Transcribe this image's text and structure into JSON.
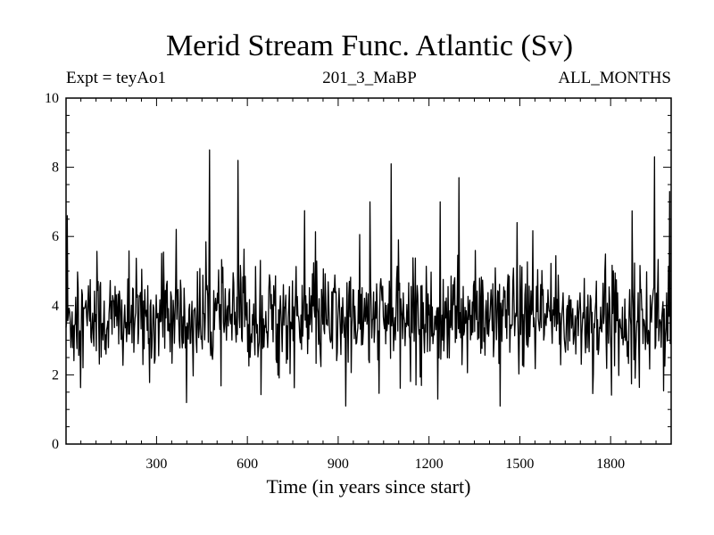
{
  "chart_data": {
    "type": "line",
    "title": "Merid Stream Func. Atlantic (Sv)",
    "header_left": "Expt = teyAo1",
    "header_center": "201_3_MaBP",
    "header_right": "ALL_MONTHS",
    "xlabel": "Time (in years since start)",
    "ylabel": "",
    "xlim": [
      1,
      2000
    ],
    "ylim": [
      0,
      10
    ],
    "xticks": [
      300,
      600,
      900,
      1200,
      1500,
      1800
    ],
    "yticks": [
      0,
      2,
      4,
      6,
      8,
      10
    ],
    "grid": false,
    "series": [
      {
        "name": "Merid Stream Func. Atlantic",
        "color": "#000000",
        "mean": 3.6,
        "std": 0.75,
        "sample_step": 2,
        "peaks": [
          {
            "x": 5,
            "y": 6.6
          },
          {
            "x": 475,
            "y": 8.5
          },
          {
            "x": 570,
            "y": 8.2
          },
          {
            "x": 1075,
            "y": 8.1
          },
          {
            "x": 1300,
            "y": 7.7
          },
          {
            "x": 1945,
            "y": 8.3
          },
          {
            "x": 1995,
            "y": 7.3
          }
        ],
        "troughs": [
          {
            "x": 400,
            "y": 1.2
          },
          {
            "x": 925,
            "y": 1.1
          },
          {
            "x": 1230,
            "y": 1.3
          },
          {
            "x": 1435,
            "y": 1.1
          }
        ]
      }
    ]
  }
}
